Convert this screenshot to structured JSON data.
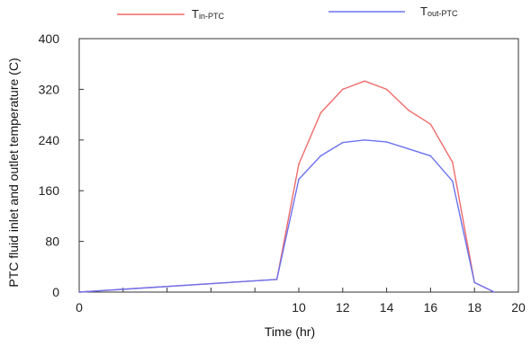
{
  "chart_data": {
    "type": "line",
    "title": "",
    "xlabel": "Time (hr)",
    "ylabel": "PTC fluid inlet and outlet temperature (C)",
    "xlim": [
      0,
      20
    ],
    "ylim": [
      0,
      400
    ],
    "xticks": [
      0,
      2,
      4,
      6,
      8,
      10,
      12,
      14,
      16,
      18,
      20
    ],
    "xticks_labeled": [
      0,
      10,
      12,
      14,
      16,
      18,
      20
    ],
    "yticks": [
      0,
      80,
      160,
      240,
      320,
      400
    ],
    "grid": false,
    "legend_position": "top",
    "series": [
      {
        "name": "Tin-PTC",
        "label_main": "T",
        "label_sub": "in-PTC",
        "color": "#f06b6b",
        "x": [
          0,
          9,
          10,
          11,
          12,
          13,
          14,
          15,
          16,
          17,
          18,
          18.9
        ],
        "values": [
          0,
          20,
          202,
          283,
          320,
          333,
          320,
          287,
          265,
          205,
          15,
          0
        ]
      },
      {
        "name": "Tout-PTC",
        "label_main": "T",
        "label_sub": "out-PTC",
        "color": "#6b73f0",
        "x": [
          0,
          9,
          10,
          11,
          12,
          13,
          14,
          15,
          16,
          17,
          18,
          18.9
        ],
        "values": [
          0,
          20,
          178,
          215,
          236,
          240,
          237,
          226,
          215,
          175,
          15,
          0
        ]
      }
    ]
  }
}
